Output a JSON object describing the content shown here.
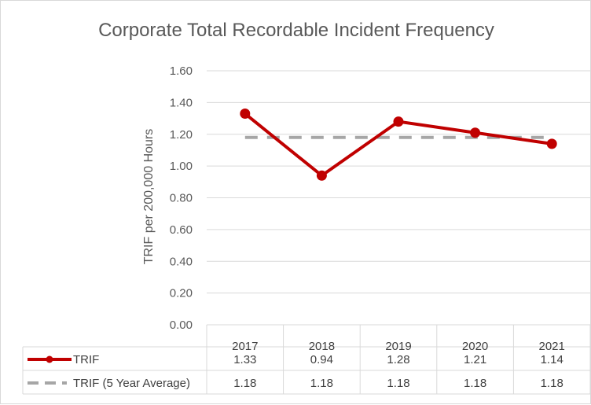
{
  "chart_data": {
    "type": "line",
    "title": "Corporate Total Recordable Incident Frequency",
    "ylabel": "TRIF per 200,000 Hours",
    "xlabel": "",
    "categories": [
      "2017",
      "2018",
      "2019",
      "2020",
      "2021"
    ],
    "ylim": [
      0,
      1.6
    ],
    "yticks": [
      "0.00",
      "0.20",
      "0.40",
      "0.60",
      "0.80",
      "1.00",
      "1.20",
      "1.40",
      "1.60"
    ],
    "grid": true,
    "legend": "data-table",
    "series": [
      {
        "name": "TRIF",
        "values": [
          1.33,
          0.94,
          1.28,
          1.21,
          1.14
        ],
        "labels": [
          "1.33",
          "0.94",
          "1.28",
          "1.21",
          "1.14"
        ],
        "color": "#c00000",
        "style": "solid-with-markers"
      },
      {
        "name": "TRIF (5 Year Average)",
        "values": [
          1.18,
          1.18,
          1.18,
          1.18,
          1.18
        ],
        "labels": [
          "1.18",
          "1.18",
          "1.18",
          "1.18",
          "1.18"
        ],
        "color": "#a6a6a6",
        "style": "dashed"
      }
    ]
  }
}
